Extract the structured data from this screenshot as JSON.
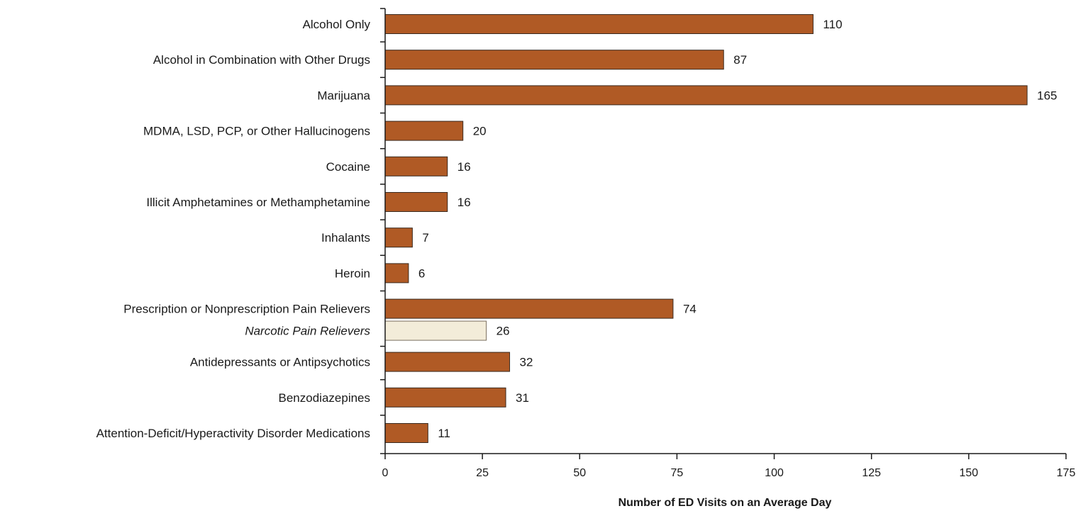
{
  "chart_data": {
    "type": "bar",
    "orientation": "horizontal",
    "title": "",
    "xlabel": "Number of ED Visits on an Average Day",
    "ylabel": "",
    "xlim": [
      0,
      175
    ],
    "x_ticks": [
      0,
      25,
      50,
      75,
      100,
      125,
      150,
      175
    ],
    "grid": false,
    "legend": "none",
    "colors": {
      "primary": "#b05a25",
      "secondary": "#f3ecd9",
      "bar_edge": "#3a2a1f"
    },
    "categories": [
      {
        "label": "Alcohol Only",
        "value": 110,
        "style": "primary"
      },
      {
        "label": "Alcohol in Combination with Other Drugs",
        "value": 87,
        "style": "primary"
      },
      {
        "label": "Marijuana",
        "value": 165,
        "style": "primary"
      },
      {
        "label": "MDMA, LSD, PCP, or Other Hallucinogens",
        "value": 20,
        "style": "primary"
      },
      {
        "label": "Cocaine",
        "value": 16,
        "style": "primary"
      },
      {
        "label": "Illicit Amphetamines or Methamphetamine",
        "value": 16,
        "style": "primary"
      },
      {
        "label": "Inhalants",
        "value": 7,
        "style": "primary"
      },
      {
        "label": "Heroin",
        "value": 6,
        "style": "primary"
      },
      {
        "label": "Prescription or Nonprescription Pain Relievers",
        "value": 74,
        "style": "primary"
      },
      {
        "label": "Narcotic Pain Relievers",
        "value": 26,
        "style": "secondary"
      },
      {
        "label": "Antidepressants or Antipsychotics",
        "value": 32,
        "style": "primary"
      },
      {
        "label": "Benzodiazepines",
        "value": 31,
        "style": "primary"
      },
      {
        "label": "Attention-Deficit/Hyperactivity Disorder Medications",
        "value": 11,
        "style": "primary"
      }
    ]
  }
}
